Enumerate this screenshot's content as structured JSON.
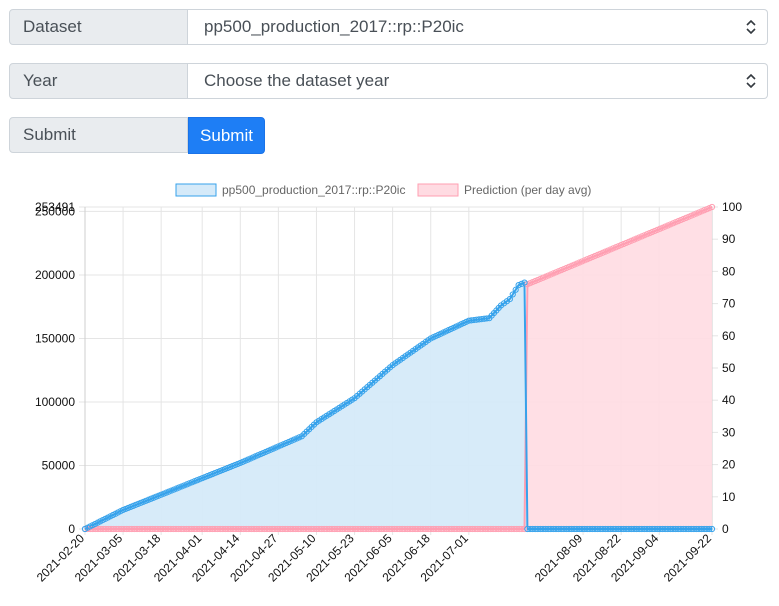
{
  "form": {
    "dataset_label": "Dataset",
    "dataset_value": "pp500_production_2017::rp::P20ic",
    "year_label": "Year",
    "year_value": "Choose the dataset year",
    "submit_label": "Submit",
    "submit_button": "Submit"
  },
  "colors": {
    "actual_line": "#36a2eb",
    "actual_fill": "#d5eaf9",
    "prediction_line": "#ff9fb2",
    "prediction_fill": "#ffdbe2",
    "button": "#1e7ef5"
  },
  "chart_data": {
    "type": "line",
    "series": [
      {
        "name": "pp500_production_2017::rp::P20ic",
        "axis": "left",
        "points": [
          [
            "2021-02-20",
            0
          ],
          [
            "2021-03-05",
            15000
          ],
          [
            "2021-03-18",
            27000
          ],
          [
            "2021-04-01",
            40000
          ],
          [
            "2021-04-14",
            52000
          ],
          [
            "2021-04-27",
            65000
          ],
          [
            "2021-05-05",
            73000
          ],
          [
            "2021-05-10",
            84000
          ],
          [
            "2021-05-23",
            103000
          ],
          [
            "2021-06-05",
            129000
          ],
          [
            "2021-06-18",
            150000
          ],
          [
            "2021-07-01",
            164000
          ],
          [
            "2021-07-08",
            166000
          ],
          [
            "2021-07-12",
            176000
          ],
          [
            "2021-07-15",
            181000
          ],
          [
            "2021-07-18",
            192000
          ],
          [
            "2021-07-20",
            194000
          ],
          [
            "2021-07-21",
            0
          ],
          [
            "2021-09-22",
            0
          ]
        ]
      },
      {
        "name": "Prediction (per day avg)",
        "axis": "right",
        "points": [
          [
            "2021-02-20",
            0
          ],
          [
            "2021-07-20",
            0
          ],
          [
            "2021-07-21",
            76
          ],
          [
            "2021-09-22",
            100
          ]
        ]
      }
    ],
    "x_ticks": [
      "2021-02-20",
      "2021-03-05",
      "2021-03-18",
      "2021-04-01",
      "2021-04-14",
      "2021-04-27",
      "2021-05-10",
      "2021-05-23",
      "2021-06-05",
      "2021-06-18",
      "2021-07-01",
      "2021-08-09",
      "2021-08-22",
      "2021-09-04",
      "2021-09-22"
    ],
    "y_left_ticks": [
      "0",
      "50000",
      "100000",
      "150000",
      "200000",
      "250000",
      "253491"
    ],
    "y_left_max": 253491,
    "y_right_ticks": [
      "0",
      "10",
      "20",
      "30",
      "40",
      "50",
      "60",
      "70",
      "80",
      "90",
      "100"
    ],
    "y_right_max": 100,
    "legend": [
      "pp500_production_2017::rp::P20ic",
      "Prediction (per day avg)"
    ],
    "legend_position": "top",
    "grid": true
  }
}
